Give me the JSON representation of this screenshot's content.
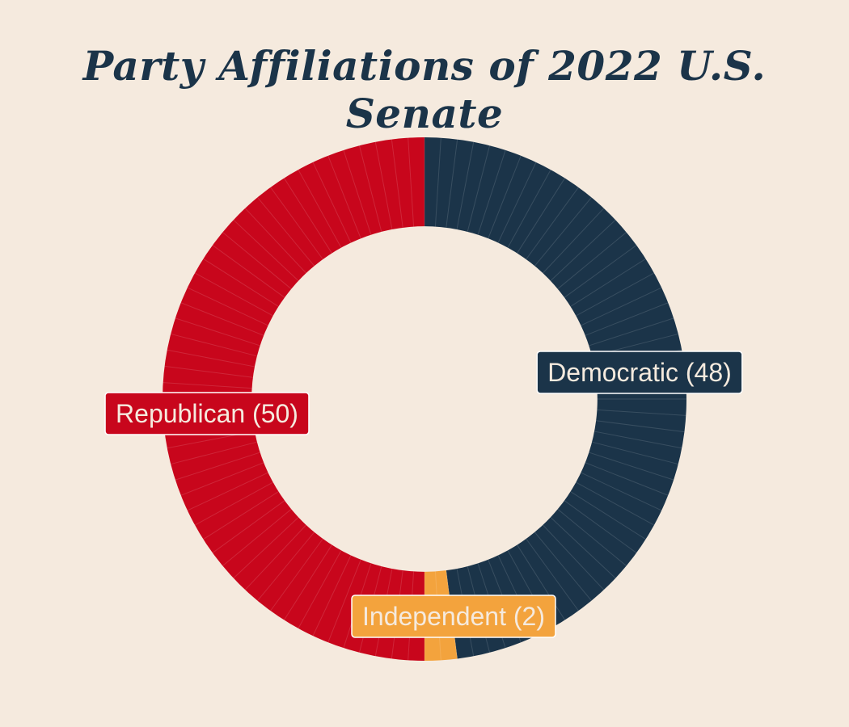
{
  "chart_data": {
    "type": "pie",
    "title": "Party Affiliations of 2022 U.S. Senate",
    "slices": [
      {
        "name": "Democratic",
        "value": 48,
        "label": "Democratic (48)",
        "color": "#1b3449",
        "label_text_color": "#f5eade"
      },
      {
        "name": "Independent",
        "value": 2,
        "label": "Independent (2)",
        "color": "#f3a33d",
        "label_text_color": "#f5eade"
      },
      {
        "name": "Republican",
        "value": 50,
        "label": "Republican (50)",
        "color": "#c8061c",
        "label_text_color": "#f5eade"
      }
    ],
    "hole": 0.66,
    "seat_separators": true
  },
  "colors": {
    "background": "#f5eade",
    "title": "#1b3449",
    "separator": "#ffffff"
  }
}
